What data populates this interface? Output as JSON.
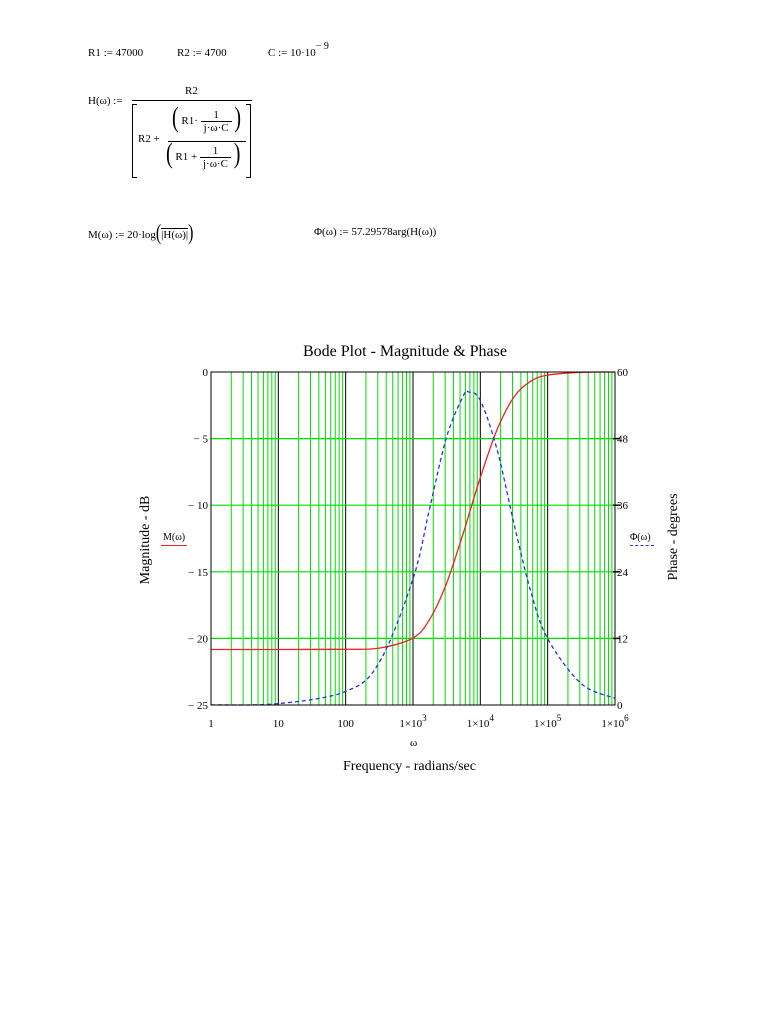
{
  "worksheet": {
    "definitions": [
      {
        "name": "R1",
        "assign": ":=",
        "value": "47000"
      },
      {
        "name": "R2",
        "assign": ":=",
        "value": "4700"
      },
      {
        "name": "C",
        "assign": ":=",
        "mantissa": "10·10",
        "exponent": "− 9"
      }
    ],
    "transfer_function": {
      "lhs": "H(ω) :=",
      "numerator": "R2",
      "den_prefix": "R2 +",
      "inner_num_left": "R1·",
      "inner_num_frac_num": "1",
      "inner_num_frac_den": "j·ω·C",
      "inner_den_left": "R1 +",
      "inner_den_frac_num": "1",
      "inner_den_frac_den": "j·ω·C"
    },
    "magnitude_def": {
      "lhs": "M(ω) :=",
      "rhs_prefix": "20·log",
      "rhs_arg": "|H(ω)|"
    },
    "phase_def": {
      "lhs": "Φ(ω) :=",
      "rhs": "57.29578arg(H(ω))"
    }
  },
  "chart_data": {
    "type": "line",
    "title": "Bode Plot - Magnitude & Phase",
    "xlabel": "Frequency - radians/sec",
    "xvar": "ω",
    "ylabel": "Magnitude - dB",
    "y2label": "Phase - degrees",
    "xscale": "log",
    "xlim": [
      1,
      1000000
    ],
    "ylim": [
      -25,
      0
    ],
    "y2lim": [
      0,
      60
    ],
    "grid": true,
    "grid_color": "#00dd00",
    "x_tick_labels": [
      "1",
      "10",
      "100",
      "1×10^3",
      "1×10^4",
      "1×10^5",
      "1×10^6"
    ],
    "x_tick_values": [
      1,
      10,
      100,
      1000,
      10000,
      100000,
      1000000
    ],
    "y_tick_labels": [
      "0",
      "− 5",
      "− 10",
      "− 15",
      "− 20",
      "− 25"
    ],
    "y_tick_values": [
      0,
      -5,
      -10,
      -15,
      -20,
      -25
    ],
    "y2_tick_labels": [
      "60",
      "48",
      "36",
      "24",
      "12",
      "0"
    ],
    "y2_tick_values": [
      60,
      48,
      36,
      24,
      12,
      0
    ],
    "legend": [
      {
        "label": "M(ω)",
        "color": "#ee2222",
        "style": "solid",
        "position": "left"
      },
      {
        "label": "Φ(ω)",
        "color": "#2233dd",
        "style": "dashed",
        "position": "right"
      }
    ],
    "x": [
      1,
      10,
      100,
      316,
      1000,
      1778,
      3162,
      5623,
      6700,
      10000,
      17783,
      31623,
      56234,
      100000,
      316228,
      1000000
    ],
    "series": [
      {
        "name": "M(ω)",
        "axis": "left",
        "color": "#ee2222",
        "values": [
          -20.83,
          -20.83,
          -20.82,
          -20.73,
          -19.97,
          -18.55,
          -15.84,
          -12.05,
          -10.79,
          -7.92,
          -4.3,
          -1.88,
          -0.69,
          -0.23,
          -0.02,
          0.0
        ]
      },
      {
        "name": "Φ(ω)",
        "axis": "right",
        "color": "#2233dd",
        "values": [
          0.02,
          0.25,
          2.45,
          7.68,
          22.72,
          35.55,
          48.36,
          55.76,
          56.4,
          54.88,
          45.95,
          32.66,
          20.43,
          11.95,
          3.84,
          1.22
        ]
      }
    ]
  }
}
